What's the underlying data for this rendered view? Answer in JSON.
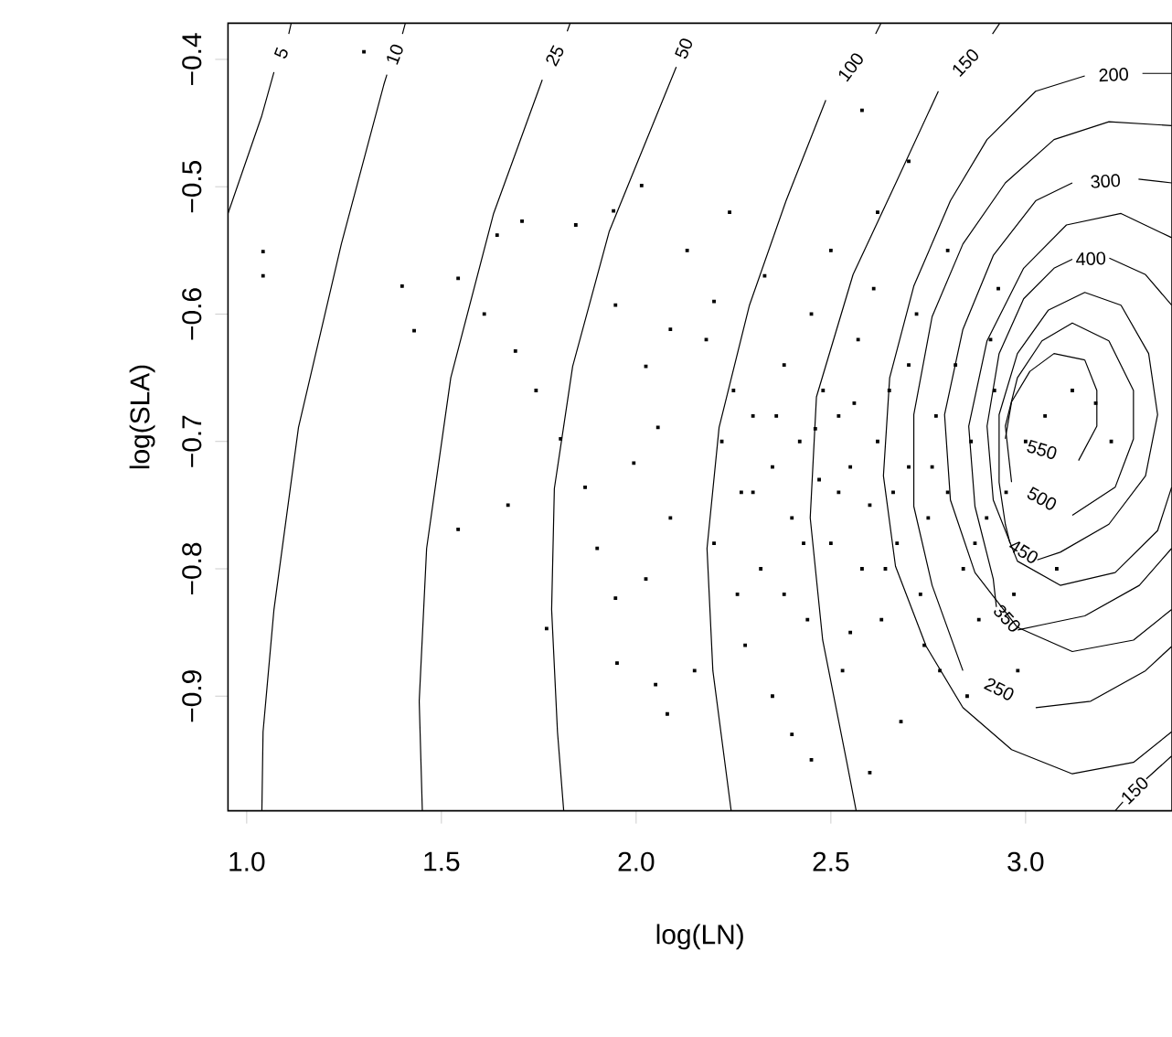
{
  "chart_data": {
    "type": "scatter",
    "xlabel": "log(LN)",
    "ylabel": "log(SLA)",
    "xlim": [
      0.952,
      3.376
    ],
    "ylim": [
      -0.99,
      -0.3716
    ],
    "xticks": [
      {
        "value": 1,
        "label": "1.0"
      },
      {
        "value": 1.5,
        "label": "1.5"
      },
      {
        "value": 2,
        "label": "2.0"
      },
      {
        "value": 2.5,
        "label": "2.5"
      },
      {
        "value": 3,
        "label": "3.0"
      }
    ],
    "yticks": [
      {
        "value": -0.9,
        "label": "−0.9"
      },
      {
        "value": -0.8,
        "label": "−0.8"
      },
      {
        "value": -0.7,
        "label": "−0.7"
      },
      {
        "value": -0.6,
        "label": "−0.6"
      },
      {
        "value": -0.5,
        "label": "−0.5"
      },
      {
        "value": -0.4,
        "label": "−0.4"
      }
    ],
    "series": [
      {
        "marker": "square",
        "color": "#000000",
        "x": [
          1.042,
          1.042,
          1.301,
          1.399,
          1.43,
          1.543,
          1.543,
          1.707,
          1.643,
          1.61,
          1.671,
          1.77,
          1.951,
          2.08,
          2.05,
          2.014,
          1.942,
          2.131,
          1.845,
          1.69,
          1.743,
          1.806,
          1.869,
          1.9,
          1.947,
          2.025,
          2.056,
          1.994,
          2.088,
          2.025,
          1.947,
          2.088,
          2.18,
          2.22,
          2.25,
          2.2,
          2.27,
          2.3,
          2.32,
          2.35,
          2.28,
          2.38,
          2.4,
          2.42,
          2.44,
          2.45,
          2.47,
          2.5,
          2.52,
          2.53,
          2.55,
          2.57,
          2.58,
          2.6,
          2.62,
          2.63,
          2.65,
          2.67,
          2.68,
          2.7,
          2.72,
          2.73,
          2.75,
          2.77,
          2.78,
          2.8,
          2.82,
          2.84,
          2.86,
          2.88,
          2.9,
          2.92,
          2.95,
          2.97,
          3.0,
          3.05,
          3.12,
          3.18,
          3.22,
          2.35,
          2.45,
          2.6,
          2.5,
          2.62,
          2.7,
          2.58,
          2.33,
          2.24,
          2.4,
          2.15,
          2.55,
          2.48,
          2.66,
          2.74,
          2.85,
          2.93,
          2.8,
          2.38,
          2.3,
          2.43,
          2.52,
          2.64,
          2.76,
          2.87,
          2.56,
          2.46,
          2.36,
          2.26,
          2.98,
          3.08,
          2.2,
          2.7,
          2.61,
          2.91
        ],
        "values": [
          -0.551,
          -0.57,
          -0.394,
          -0.578,
          -0.613,
          -0.572,
          -0.769,
          -0.527,
          -0.538,
          -0.6,
          -0.75,
          -0.847,
          -0.874,
          -0.914,
          -0.891,
          -0.499,
          -0.519,
          -0.55,
          -0.53,
          -0.629,
          -0.66,
          -0.698,
          -0.736,
          -0.784,
          -0.823,
          -0.641,
          -0.689,
          -0.717,
          -0.76,
          -0.808,
          -0.593,
          -0.612,
          -0.62,
          -0.7,
          -0.66,
          -0.78,
          -0.74,
          -0.68,
          -0.8,
          -0.72,
          -0.86,
          -0.64,
          -0.76,
          -0.7,
          -0.84,
          -0.6,
          -0.73,
          -0.78,
          -0.68,
          -0.88,
          -0.72,
          -0.62,
          -0.8,
          -0.75,
          -0.7,
          -0.84,
          -0.66,
          -0.78,
          -0.92,
          -0.72,
          -0.6,
          -0.82,
          -0.76,
          -0.68,
          -0.88,
          -0.74,
          -0.64,
          -0.8,
          -0.7,
          -0.84,
          -0.76,
          -0.66,
          -0.74,
          -0.82,
          -0.7,
          -0.68,
          -0.66,
          -0.67,
          -0.7,
          -0.9,
          -0.95,
          -0.96,
          -0.55,
          -0.52,
          -0.48,
          -0.44,
          -0.57,
          -0.52,
          -0.93,
          -0.88,
          -0.85,
          -0.66,
          -0.74,
          -0.86,
          -0.9,
          -0.58,
          -0.55,
          -0.82,
          -0.74,
          -0.78,
          -0.74,
          -0.8,
          -0.72,
          -0.78,
          -0.67,
          -0.69,
          -0.68,
          -0.82,
          -0.88,
          -0.8,
          -0.59,
          -0.64,
          -0.58,
          -0.62
        ]
      },
      {
        "name": "5",
        "type": "line",
        "marker": "none",
        "color": "#000000",
        "x": [
          1.114,
          1.108,
          null,
          1.07,
          1.039,
          0.952
        ],
        "values": [
          -0.372,
          -0.38,
          null,
          -0.41,
          -0.444,
          -0.521
        ]
      },
      {
        "name": "10",
        "type": "line",
        "marker": "none",
        "color": "#000000",
        "x": [
          1.407,
          1.4,
          null,
          1.36,
          1.352,
          1.243,
          1.133,
          1.07,
          1.042,
          1.039
        ],
        "values": [
          -0.372,
          -0.38,
          null,
          -0.412,
          -0.42,
          -0.545,
          -0.689,
          -0.832,
          -0.928,
          -0.99
        ]
      },
      {
        "name": "25",
        "type": "line",
        "marker": "none",
        "color": "#000000",
        "x": [
          1.83,
          1.823,
          null,
          1.759,
          1.634,
          1.524,
          1.462,
          1.443,
          1.451
        ],
        "values": [
          -0.372,
          -0.378,
          null,
          -0.416,
          -0.521,
          -0.65,
          -0.784,
          -0.904,
          -0.99
        ]
      },
      {
        "name": "50",
        "type": "line",
        "marker": "none",
        "color": "#000000",
        "x": [
          2.103,
          1.931,
          1.837,
          1.79,
          1.783,
          1.798,
          1.814
        ],
        "values": [
          -0.406,
          -0.535,
          -0.641,
          -0.737,
          -0.832,
          -0.928,
          -0.99
        ]
      },
      {
        "name": "100",
        "type": "line",
        "marker": "none",
        "color": "#000000",
        "x": [
          2.628,
          2.615,
          null,
          2.487,
          2.385,
          2.291,
          2.213,
          2.182,
          2.197,
          2.244
        ],
        "values": [
          -0.372,
          -0.38,
          null,
          -0.432,
          -0.511,
          -0.593,
          -0.689,
          -0.784,
          -0.88,
          -0.99
        ]
      },
      {
        "name": "150",
        "type": "line",
        "marker": "none",
        "color": "#000000",
        "x": [
          2.933,
          2.915,
          null,
          2.776,
          2.667,
          2.557,
          2.463,
          2.447,
          2.479,
          2.541,
          2.565
        ],
        "values": [
          -0.372,
          -0.38,
          null,
          -0.425,
          -0.497,
          -0.569,
          -0.665,
          -0.76,
          -0.856,
          -0.952,
          -0.99
        ]
      },
      {
        "name": "150",
        "type": "line",
        "marker": "none",
        "color": "#000000",
        "x": [
          3.23,
          3.25,
          null,
          3.31,
          3.375
        ],
        "values": [
          -0.99,
          -0.983,
          null,
          -0.965,
          -0.947
        ]
      },
      {
        "name": "200",
        "type": "line",
        "marker": "none",
        "color": "#000000",
        "x": [
          3.375,
          3.3,
          null,
          3.152,
          3.026,
          2.901,
          2.807,
          2.713,
          2.651,
          2.635,
          2.666,
          2.745,
          2.839,
          2.964,
          3.12,
          3.277,
          3.375
        ],
        "values": [
          -0.411,
          -0.411,
          null,
          -0.413,
          -0.425,
          -0.463,
          -0.511,
          -0.578,
          -0.65,
          -0.727,
          -0.798,
          -0.861,
          -0.909,
          -0.942,
          -0.961,
          -0.952,
          -0.928
        ]
      },
      {
        "name": "250",
        "type": "line",
        "marker": "none",
        "color": "#000000",
        "x": [
          3.375,
          3.214,
          3.073,
          2.948,
          2.839,
          2.76,
          2.713,
          2.713,
          2.76,
          2.839,
          null,
          3.026,
          3.167,
          3.308,
          3.375
        ],
        "values": [
          -0.452,
          -0.449,
          -0.463,
          -0.497,
          -0.545,
          -0.602,
          -0.679,
          -0.751,
          -0.813,
          -0.88,
          null,
          -0.909,
          -0.904,
          -0.88,
          -0.861
        ]
      },
      {
        "name": "300",
        "type": "line",
        "marker": "none",
        "color": "#000000",
        "x": [
          3.375,
          3.29,
          null,
          3.12,
          3.026,
          2.917,
          2.839,
          2.792,
          2.807,
          2.87,
          2.979,
          3.12,
          3.277,
          3.375
        ],
        "values": [
          -0.497,
          -0.494,
          null,
          -0.497,
          -0.511,
          -0.554,
          -0.612,
          -0.679,
          -0.746,
          -0.803,
          -0.846,
          -0.865,
          -0.856,
          -0.832
        ]
      },
      {
        "name": "350",
        "type": "line",
        "marker": "none",
        "color": "#000000",
        "x": [
          3.375,
          3.245,
          3.105,
          2.995,
          2.901,
          2.854,
          2.87,
          2.917,
          2.925,
          null,
          2.98,
          3.042,
          3.152,
          3.292,
          3.375
        ],
        "values": [
          -0.54,
          -0.521,
          -0.53,
          -0.564,
          -0.621,
          -0.688,
          -0.751,
          -0.808,
          -0.83,
          null,
          -0.848,
          -0.844,
          -0.837,
          -0.813,
          -0.784
        ]
      },
      {
        "name": "400",
        "type": "line",
        "marker": "none",
        "color": "#000000",
        "x": [
          3.375,
          3.308,
          3.215,
          null,
          3.12,
          3.073,
          2.995,
          2.932,
          2.901,
          2.917,
          2.979,
          3.089,
          3.23,
          3.339,
          3.375
        ],
        "values": [
          -0.593,
          -0.569,
          -0.556,
          null,
          -0.557,
          -0.564,
          -0.588,
          -0.631,
          -0.688,
          -0.746,
          -0.794,
          -0.813,
          -0.803,
          -0.77,
          -0.736
        ]
      },
      {
        "name": "450",
        "type": "line",
        "marker": "none",
        "color": "#000000",
        "x": [
          3.245,
          3.152,
          3.058,
          2.979,
          2.932,
          2.932,
          2.948,
          2.96,
          null,
          3.03,
          3.089,
          3.214,
          3.308,
          3.339,
          3.316,
          3.245
        ],
        "values": [
          -0.593,
          -0.583,
          -0.597,
          -0.631,
          -0.679,
          -0.732,
          -0.765,
          -0.78,
          null,
          -0.793,
          -0.787,
          -0.765,
          -0.727,
          -0.679,
          -0.631,
          -0.593
        ]
      },
      {
        "name": "500",
        "type": "line",
        "marker": "none",
        "color": "#000000",
        "x": [
          3.214,
          3.12,
          3.042,
          2.979,
          2.948,
          2.964,
          null,
          3.12,
          3.23,
          3.277,
          3.277,
          3.214
        ],
        "values": [
          -0.621,
          -0.607,
          -0.621,
          -0.65,
          -0.688,
          -0.732,
          null,
          -0.758,
          -0.736,
          -0.698,
          -0.66,
          -0.621
        ]
      },
      {
        "name": "550",
        "type": "line",
        "marker": "none",
        "color": "#000000",
        "x": [
          3.152,
          3.073,
          3.011,
          2.964,
          2.948,
          null,
          3.136,
          3.183,
          3.183,
          3.152
        ],
        "values": [
          -0.636,
          -0.631,
          -0.645,
          -0.669,
          -0.698,
          null,
          -0.715,
          -0.688,
          -0.66,
          -0.636
        ]
      }
    ]
  }
}
